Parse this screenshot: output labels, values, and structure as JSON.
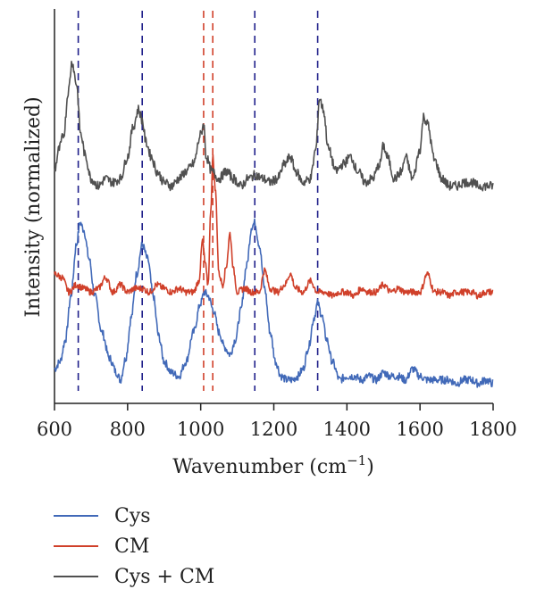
{
  "chart_data": {
    "type": "line",
    "title": "",
    "xlabel": "Wavenumber (cm",
    "xlabel_sup": "−1",
    "xlabel_tail": ")",
    "ylabel": "Intensity (normalized)",
    "xlim": [
      600,
      1800
    ],
    "ylim": [
      0,
      100
    ],
    "y_ticks_shown": false,
    "grid": false,
    "legend_position": "below",
    "x_ticks": [
      "600",
      "800",
      "1000",
      "1200",
      "1400",
      "1600",
      "1800"
    ],
    "series": [
      {
        "name": "Cys",
        "color": "#4169b8",
        "offset": 0,
        "x": [
          600,
          615,
          630,
          645,
          660,
          670,
          680,
          695,
          710,
          730,
          750,
          770,
          780,
          795,
          810,
          825,
          840,
          855,
          870,
          885,
          900,
          920,
          940,
          960,
          980,
          1000,
          1010,
          1020,
          1035,
          1050,
          1065,
          1080,
          1095,
          1110,
          1125,
          1140,
          1148,
          1160,
          1175,
          1190,
          1205,
          1220,
          1235,
          1250,
          1265,
          1280,
          1295,
          1310,
          1320,
          1330,
          1345,
          1360,
          1380,
          1400,
          1420,
          1440,
          1460,
          1480,
          1500,
          1520,
          1540,
          1560,
          1580,
          1600,
          1620,
          1640,
          1660,
          1680,
          1700,
          1720,
          1740,
          1760,
          1780,
          1800
        ],
        "y": [
          6,
          8,
          14,
          26,
          40,
          46,
          44,
          36,
          26,
          16,
          9,
          5,
          3,
          9,
          20,
          32,
          40,
          36,
          26,
          15,
          8,
          5,
          4,
          8,
          16,
          24,
          27,
          26,
          22,
          16,
          12,
          10,
          14,
          22,
          34,
          45,
          46,
          40,
          28,
          16,
          8,
          4,
          3,
          3,
          4,
          6,
          12,
          20,
          24,
          21,
          14,
          8,
          3,
          4,
          4,
          3,
          4,
          3,
          5,
          4,
          4,
          3,
          6,
          4,
          3,
          3,
          3,
          3,
          2,
          3,
          3,
          2,
          3,
          2
        ],
        "noise": 1.1
      },
      {
        "name": "CM",
        "color": "#d0402a",
        "offset": 0,
        "x": [
          600,
          620,
          640,
          660,
          680,
          700,
          720,
          740,
          760,
          780,
          800,
          820,
          840,
          860,
          880,
          900,
          920,
          940,
          960,
          980,
          995,
          1005,
          1012,
          1020,
          1028,
          1033,
          1040,
          1050,
          1060,
          1070,
          1080,
          1090,
          1100,
          1120,
          1140,
          1160,
          1175,
          1190,
          1210,
          1230,
          1245,
          1260,
          1280,
          1300,
          1320,
          1340,
          1360,
          1380,
          1400,
          1420,
          1440,
          1460,
          1480,
          1500,
          1520,
          1540,
          1560,
          1580,
          1600,
          1620,
          1640,
          1660,
          1680,
          1700,
          1720,
          1740,
          1760,
          1780,
          1800
        ],
        "y": [
          32,
          31,
          27,
          29,
          28,
          27,
          28,
          31,
          27,
          29,
          27,
          28,
          28,
          27,
          29,
          28,
          27,
          28,
          27,
          27,
          30,
          41,
          35,
          29,
          50,
          64,
          55,
          32,
          29,
          34,
          43,
          33,
          27,
          28,
          27,
          27,
          33,
          28,
          27,
          29,
          32,
          28,
          27,
          30,
          27,
          27,
          26,
          27,
          27,
          26,
          28,
          27,
          27,
          29,
          27,
          28,
          27,
          27,
          27,
          32,
          27,
          27,
          26,
          27,
          27,
          27,
          26,
          27,
          27
        ],
        "noise": 0.9
      },
      {
        "name": "Cys + CM",
        "color": "#505050",
        "offset": 0,
        "x": [
          600,
          612,
          625,
          638,
          648,
          660,
          672,
          685,
          700,
          720,
          740,
          760,
          780,
          800,
          815,
          830,
          840,
          850,
          865,
          880,
          900,
          920,
          940,
          960,
          980,
          1000,
          1008,
          1015,
          1030,
          1050,
          1070,
          1090,
          1110,
          1130,
          1150,
          1170,
          1190,
          1210,
          1230,
          1245,
          1260,
          1280,
          1300,
          1315,
          1325,
          1335,
          1350,
          1370,
          1390,
          1410,
          1430,
          1450,
          1470,
          1490,
          1500,
          1510,
          1530,
          1550,
          1560,
          1580,
          1600,
          1610,
          1620,
          1640,
          1660,
          1680,
          1700,
          1720,
          1740,
          1760,
          1780,
          1800
        ],
        "y": [
          60,
          66,
          70,
          82,
          90,
          84,
          70,
          64,
          58,
          56,
          58,
          57,
          58,
          64,
          72,
          77,
          74,
          68,
          64,
          60,
          57,
          56,
          58,
          60,
          62,
          70,
          73,
          64,
          60,
          58,
          60,
          58,
          56,
          58,
          59,
          58,
          57,
          58,
          62,
          64,
          60,
          57,
          58,
          66,
          80,
          77,
          66,
          60,
          62,
          64,
          60,
          57,
          58,
          62,
          67,
          64,
          58,
          60,
          64,
          58,
          66,
          75,
          73,
          63,
          58,
          56,
          56,
          57,
          57,
          56,
          56,
          56
        ],
        "noise": 1.3
      }
    ],
    "reference_lines": [
      {
        "x": 665,
        "color": "#1f1f8a"
      },
      {
        "x": 840,
        "color": "#1f1f8a"
      },
      {
        "x": 1148,
        "color": "#1f1f8a"
      },
      {
        "x": 1320,
        "color": "#1f1f8a"
      },
      {
        "x": 1008,
        "color": "#d0402a"
      },
      {
        "x": 1033,
        "color": "#d0402a"
      }
    ]
  }
}
